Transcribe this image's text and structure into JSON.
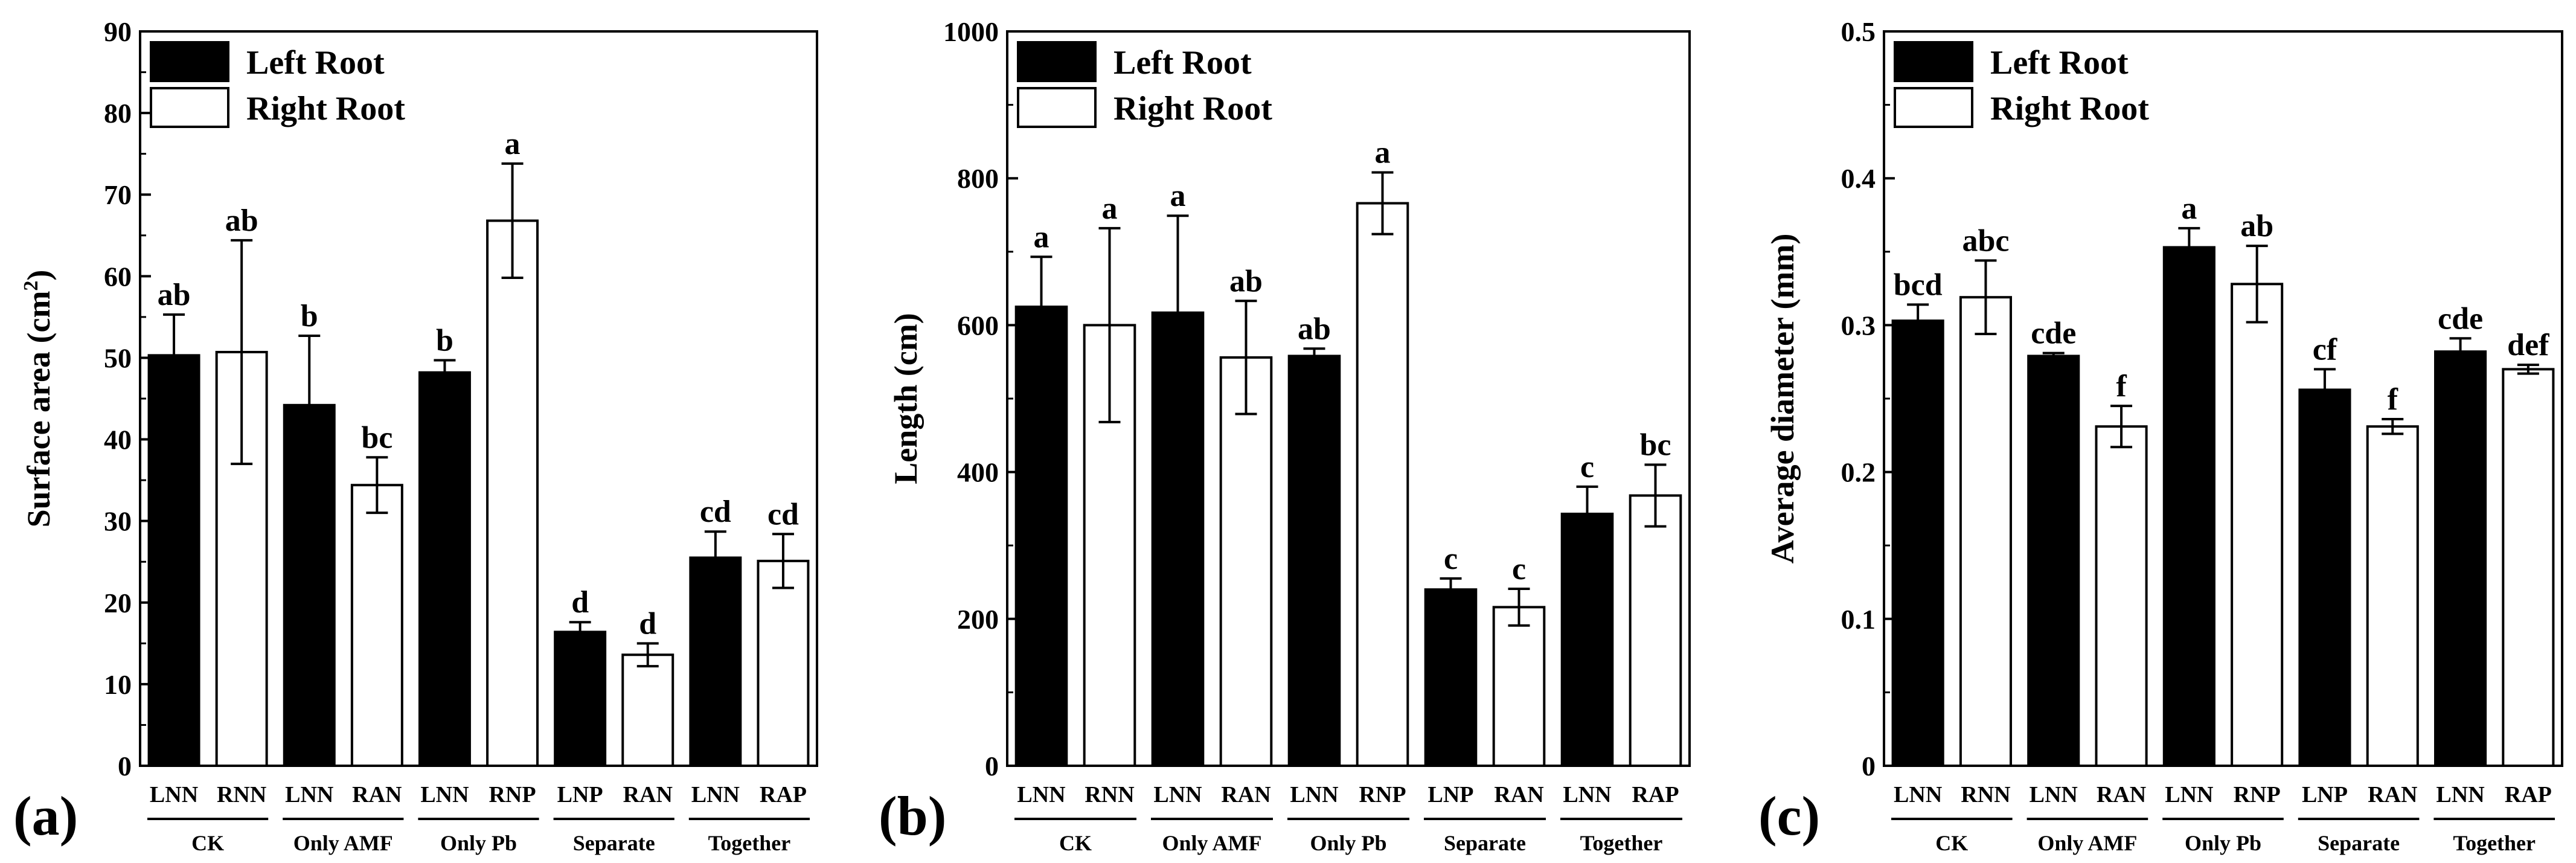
{
  "chart_data": [
    {
      "type": "bar",
      "panel_label": "(a)",
      "ylabel": "Surface area (cm",
      "ylabel_sup": "2",
      "ylabel_end": ")",
      "ylim": [
        0,
        90
      ],
      "yticks": [
        "0",
        "10",
        "20",
        "30",
        "40",
        "50",
        "60",
        "70",
        "80",
        "90"
      ],
      "yticks_values": [
        0,
        10,
        20,
        30,
        40,
        50,
        60,
        70,
        80,
        90
      ],
      "legend": [
        "Left Root",
        "Right Root"
      ],
      "groups": [
        "CK",
        "Only AMF",
        "Only Pb",
        "Separate",
        "Together"
      ],
      "categories": [
        "LNN",
        "RNN",
        "LNN",
        "RAN",
        "LNN",
        "RNP",
        "LNP",
        "RAN",
        "LNN",
        "RAP"
      ],
      "values": [
        50.3,
        50.7,
        44.2,
        34.4,
        48.2,
        66.8,
        16.4,
        13.6,
        25.5,
        25.1
      ],
      "errors": [
        5.0,
        13.7,
        8.5,
        3.4,
        1.5,
        7.0,
        1.2,
        1.4,
        3.2,
        3.3
      ],
      "letters": [
        "ab",
        "ab",
        "b",
        "bc",
        "b",
        "a",
        "d",
        "d",
        "cd",
        "cd"
      ]
    },
    {
      "type": "bar",
      "panel_label": "(b)",
      "ylabel": "Length (cm)",
      "ylim": [
        0,
        1000
      ],
      "yticks": [
        "0",
        "200",
        "400",
        "600",
        "800",
        "1000"
      ],
      "yticks_values": [
        0,
        200,
        400,
        600,
        800,
        1000
      ],
      "legend": [
        "Left Root",
        "Right Root"
      ],
      "groups": [
        "CK",
        "Only AMF",
        "Only Pb",
        "Separate",
        "Together"
      ],
      "categories": [
        "LNN",
        "RNN",
        "LNN",
        "RAN",
        "LNN",
        "RNP",
        "LNP",
        "RAN",
        "LNN",
        "RAP"
      ],
      "values": [
        625,
        600,
        617,
        556,
        558,
        766,
        240,
        216,
        343,
        368
      ],
      "errors": [
        68,
        132,
        132,
        77,
        10,
        42,
        15,
        25,
        37,
        42
      ],
      "letters": [
        "a",
        "a",
        "a",
        "ab",
        "ab",
        "a",
        "c",
        "c",
        "c",
        "bc"
      ]
    },
    {
      "type": "bar",
      "panel_label": "(c)",
      "ylabel": "Average diameter (mm)",
      "ylim": [
        0,
        0.5
      ],
      "yticks": [
        "0",
        "0.1",
        "0.2",
        "0.3",
        "0.4",
        "0.5"
      ],
      "yticks_values": [
        0,
        0.1,
        0.2,
        0.3,
        0.4,
        0.5
      ],
      "legend": [
        "Left Root",
        "Right Root"
      ],
      "groups": [
        "CK",
        "Only AMF",
        "Only Pb",
        "Separate",
        "Together"
      ],
      "categories": [
        "LNN",
        "RNN",
        "LNN",
        "RAN",
        "LNN",
        "RNP",
        "LNP",
        "RAN",
        "LNN",
        "RAP"
      ],
      "values": [
        0.303,
        0.319,
        0.279,
        0.231,
        0.353,
        0.328,
        0.256,
        0.231,
        0.282,
        0.27
      ],
      "errors": [
        0.011,
        0.025,
        0.002,
        0.014,
        0.013,
        0.026,
        0.014,
        0.005,
        0.009,
        0.003
      ],
      "letters": [
        "bcd",
        "abc",
        "cde",
        "f",
        "a",
        "ab",
        "cf",
        "f",
        "cde",
        "def"
      ]
    }
  ]
}
